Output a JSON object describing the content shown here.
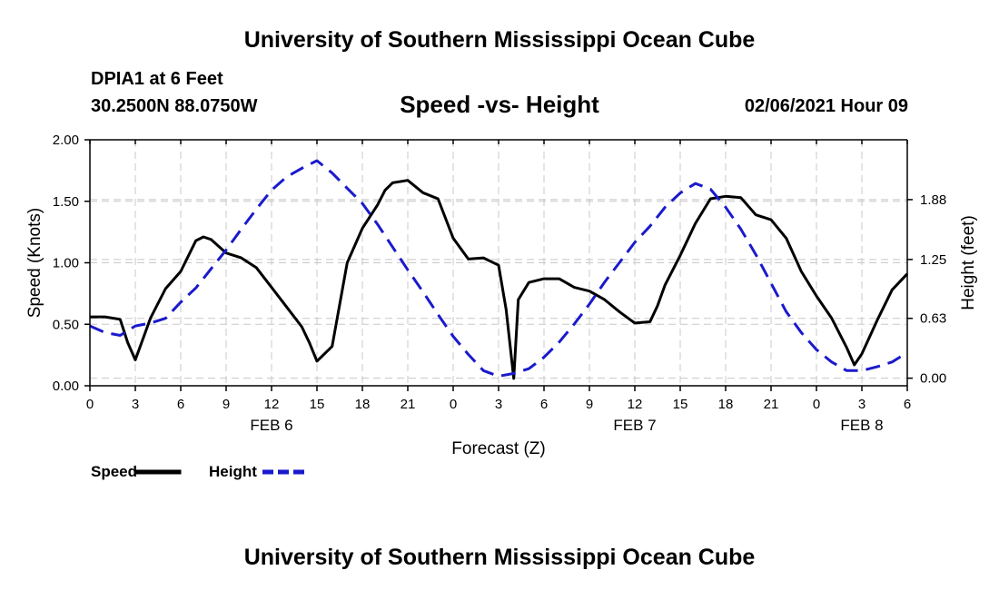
{
  "header": {
    "title": "University of Southern Mississippi Ocean Cube",
    "station": "DPIA1 at 6 Feet",
    "coords": "30.2500N 88.0750W",
    "subtitle": "Speed -vs- Height",
    "datetime": "02/06/2021 Hour 09"
  },
  "footer": {
    "title": "University of Southern Mississippi Ocean Cube"
  },
  "chart_data": {
    "type": "line",
    "title": "Speed -vs- Height",
    "xlabel": "Forecast (Z)",
    "ylabel": "Speed (Knots)",
    "y2label": "Height (feet)",
    "xlim": [
      0,
      54
    ],
    "ylim": [
      0,
      2.0
    ],
    "y2lim": [
      -0.08,
      2.51
    ],
    "grid": true,
    "x_ticks": [
      {
        "x": 0,
        "label": "0"
      },
      {
        "x": 3,
        "label": "3"
      },
      {
        "x": 6,
        "label": "6"
      },
      {
        "x": 9,
        "label": "9"
      },
      {
        "x": 12,
        "label": "12"
      },
      {
        "x": 15,
        "label": "15"
      },
      {
        "x": 18,
        "label": "18"
      },
      {
        "x": 21,
        "label": "21"
      },
      {
        "x": 24,
        "label": "0"
      },
      {
        "x": 27,
        "label": "3"
      },
      {
        "x": 30,
        "label": "6"
      },
      {
        "x": 33,
        "label": "9"
      },
      {
        "x": 36,
        "label": "12"
      },
      {
        "x": 39,
        "label": "15"
      },
      {
        "x": 42,
        "label": "18"
      },
      {
        "x": 45,
        "label": "21"
      },
      {
        "x": 48,
        "label": "0"
      },
      {
        "x": 51,
        "label": "3"
      },
      {
        "x": 54,
        "label": "6"
      }
    ],
    "date_labels": [
      {
        "x": 12,
        "label": "FEB 6"
      },
      {
        "x": 36,
        "label": "FEB 7"
      },
      {
        "x": 51,
        "label": "FEB 8"
      }
    ],
    "y_ticks": [
      {
        "v": 0.0,
        "label": "0.00"
      },
      {
        "v": 0.5,
        "label": "0.50"
      },
      {
        "v": 1.0,
        "label": "1.00"
      },
      {
        "v": 1.5,
        "label": "1.50"
      },
      {
        "v": 2.0,
        "label": "2.00"
      }
    ],
    "y2_ticks": [
      {
        "v": 0.0,
        "label": "0.00"
      },
      {
        "v": 0.63,
        "label": "0.63"
      },
      {
        "v": 1.25,
        "label": "1.25"
      },
      {
        "v": 1.88,
        "label": "1.88"
      }
    ],
    "legend": [
      {
        "name": "Speed",
        "color": "#000000",
        "style": "solid"
      },
      {
        "name": "Height",
        "color": "#1a1acc",
        "style": "dashed"
      }
    ],
    "series": [
      {
        "name": "Speed",
        "axis": "left",
        "color": "#000000",
        "style": "solid",
        "x": [
          0,
          1,
          2,
          2.5,
          3,
          4,
          5,
          6,
          7,
          7.5,
          8,
          9,
          10,
          11,
          12,
          13,
          14,
          14.5,
          15,
          16,
          17,
          18,
          19,
          19.5,
          20,
          21,
          22,
          23,
          24,
          25,
          26,
          27,
          27.5,
          28,
          28.3,
          29,
          30,
          31,
          32,
          33,
          34,
          35,
          36,
          37,
          37.5,
          38,
          39,
          40,
          41,
          42,
          43,
          44,
          45,
          46,
          47,
          48,
          49,
          50,
          50.5,
          51,
          52,
          53,
          54
        ],
        "values": [
          0.56,
          0.56,
          0.54,
          0.35,
          0.21,
          0.55,
          0.79,
          0.93,
          1.18,
          1.21,
          1.19,
          1.08,
          1.04,
          0.96,
          0.8,
          0.64,
          0.48,
          0.35,
          0.2,
          0.32,
          1.0,
          1.28,
          1.47,
          1.59,
          1.65,
          1.67,
          1.57,
          1.52,
          1.2,
          1.03,
          1.04,
          0.98,
          0.62,
          0.06,
          0.7,
          0.84,
          0.87,
          0.87,
          0.8,
          0.77,
          0.7,
          0.6,
          0.51,
          0.52,
          0.65,
          0.82,
          1.06,
          1.32,
          1.52,
          1.54,
          1.53,
          1.39,
          1.35,
          1.2,
          0.93,
          0.73,
          0.55,
          0.31,
          0.17,
          0.26,
          0.53,
          0.78,
          0.91
        ]
      },
      {
        "name": "Height",
        "axis": "right",
        "color": "#1a1acc",
        "style": "dashed",
        "x": [
          0,
          1,
          2,
          3,
          4,
          5,
          6,
          7,
          8,
          9,
          10,
          11,
          12,
          13,
          14,
          15,
          16,
          17,
          18,
          19,
          20,
          21,
          22,
          23,
          24,
          25,
          26,
          27,
          28,
          29,
          30,
          31,
          32,
          33,
          34,
          35,
          36,
          37,
          38,
          39,
          40,
          41,
          42,
          43,
          44,
          45,
          46,
          47,
          48,
          49,
          50,
          51,
          52,
          53,
          54
        ],
        "values": [
          0.55,
          0.48,
          0.45,
          0.55,
          0.58,
          0.63,
          0.8,
          0.95,
          1.15,
          1.35,
          1.57,
          1.78,
          1.98,
          2.12,
          2.21,
          2.29,
          2.16,
          2.0,
          1.84,
          1.62,
          1.38,
          1.14,
          0.91,
          0.67,
          0.44,
          0.25,
          0.08,
          0.02,
          0.05,
          0.1,
          0.22,
          0.38,
          0.57,
          0.78,
          1.01,
          1.22,
          1.43,
          1.6,
          1.8,
          1.95,
          2.05,
          1.99,
          1.8,
          1.57,
          1.3,
          1.0,
          0.7,
          0.48,
          0.3,
          0.17,
          0.08,
          0.08,
          0.12,
          0.17,
          0.27
        ]
      }
    ]
  }
}
